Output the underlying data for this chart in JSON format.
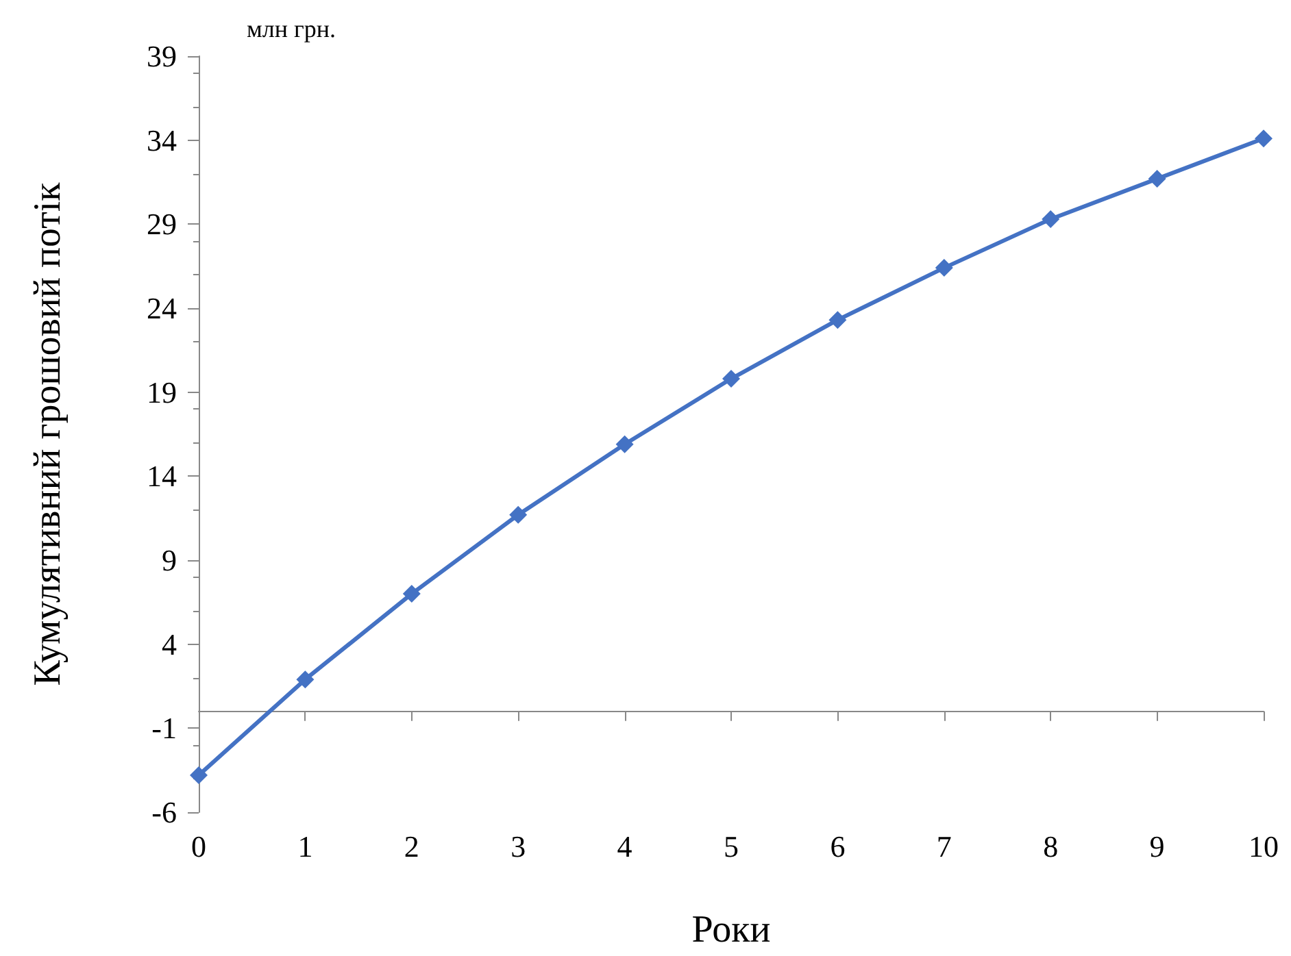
{
  "chart_data": {
    "type": "line",
    "xlabel": "Роки",
    "ylabel": "Кумулятивний грошовий потік",
    "annotations": [
      "млн грн."
    ],
    "x": [
      0,
      1,
      2,
      3,
      4,
      5,
      6,
      7,
      8,
      9,
      10
    ],
    "series": [
      {
        "color": "#4472c4",
        "values": [
          -3.8,
          1.9,
          7.0,
          11.7,
          15.9,
          19.8,
          23.3,
          26.4,
          29.3,
          31.7,
          34.1
        ]
      }
    ],
    "xlim": [
      0,
      10
    ],
    "xticks": [
      0,
      1,
      2,
      3,
      4,
      5,
      6,
      7,
      8,
      9,
      10
    ],
    "ylim": [
      -6,
      39
    ],
    "yticks": [
      -6,
      -1,
      4,
      9,
      14,
      19,
      24,
      29,
      34,
      39
    ],
    "grid": false,
    "marker": "diamond",
    "line_style": "solid"
  }
}
